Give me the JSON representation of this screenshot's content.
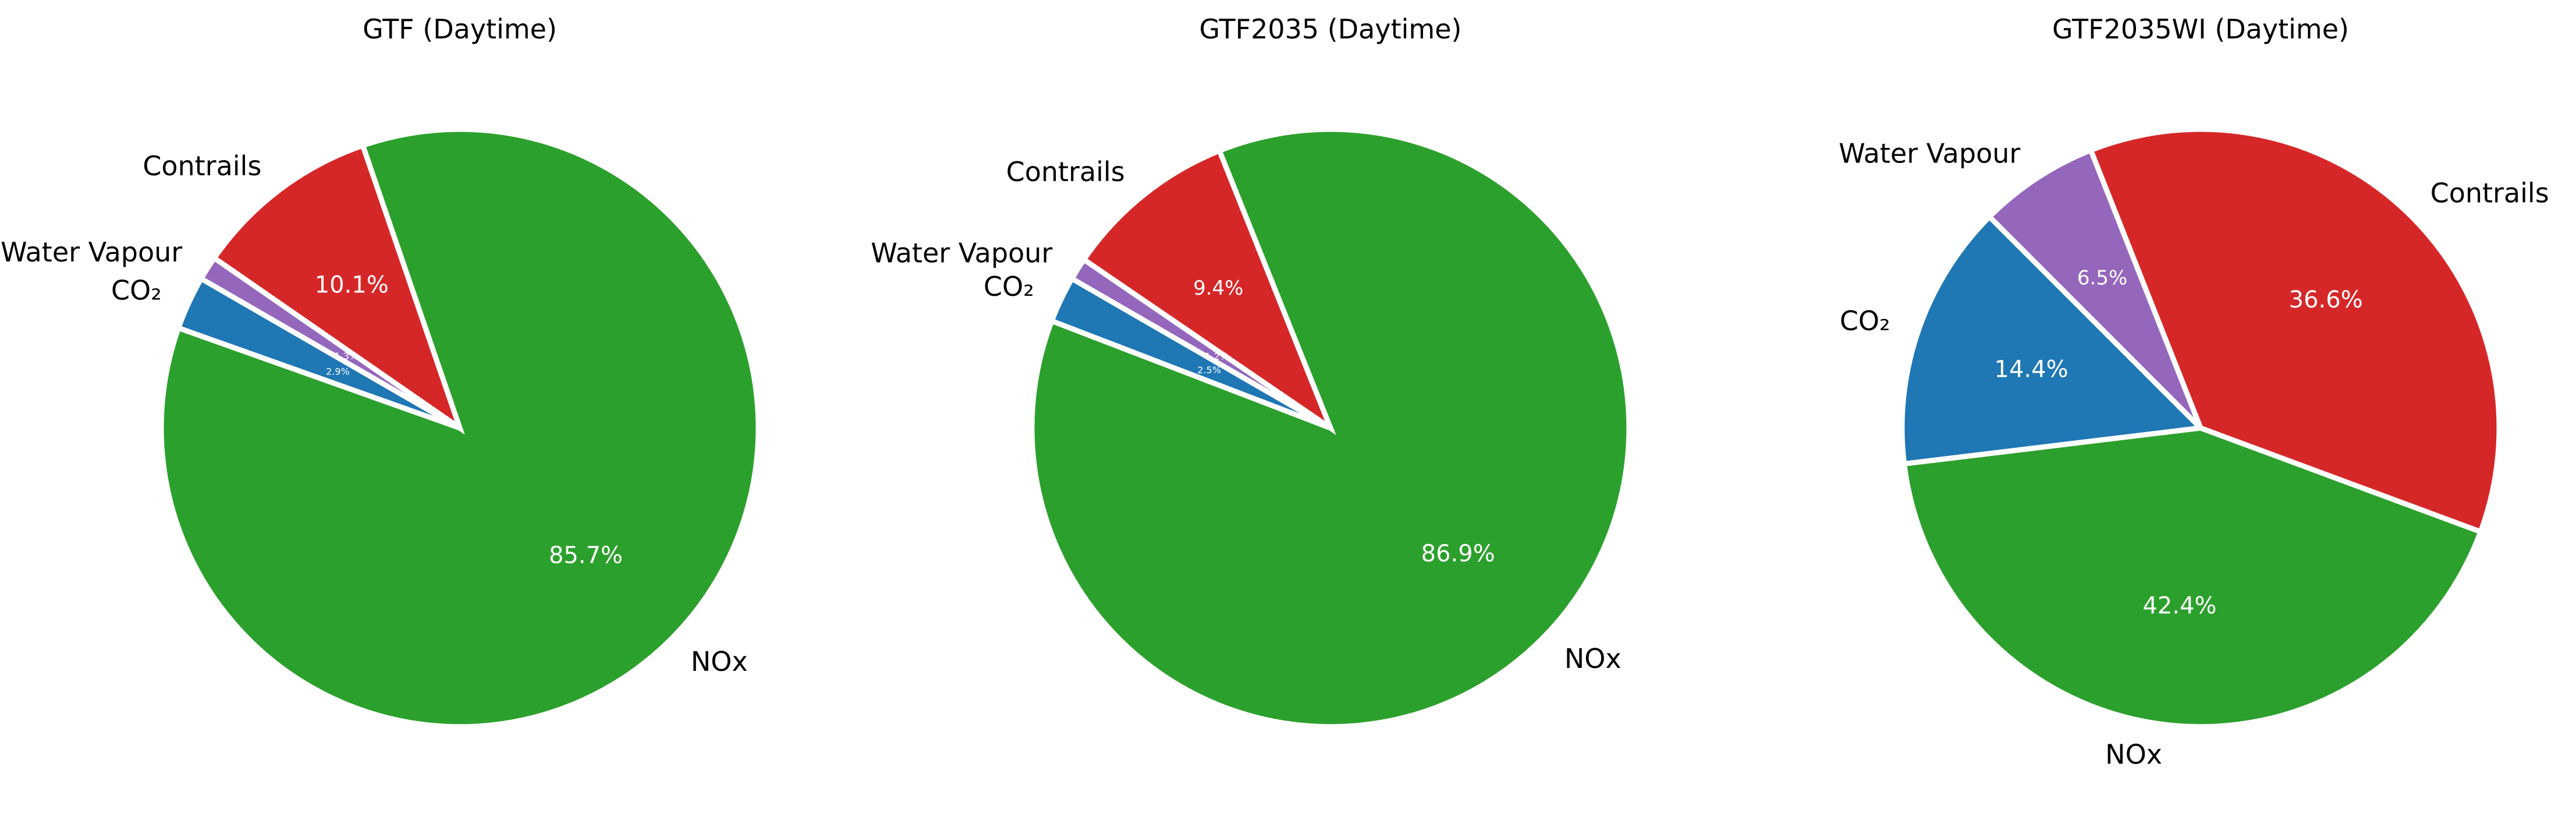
{
  "colors": {
    "CO₂": "#1f77b4",
    "Water Vapour": "#9467bd",
    "Contrails": "#d62728",
    "NOx": "#2ca02c",
    "edge": "#ffffff"
  },
  "chart_data": [
    {
      "type": "pie",
      "title": "GTF (Daytime)",
      "start_angle_deg": 150,
      "direction": "counterclockwise",
      "slices": [
        {
          "label": "CO₂",
          "value": 2.9,
          "pct_label": "2.9%"
        },
        {
          "label": "NOx",
          "value": 85.7,
          "pct_label": "85.7%"
        },
        {
          "label": "Contrails",
          "value": 10.1,
          "pct_label": "10.1%"
        },
        {
          "label": "Water Vapour",
          "value": 1.3,
          "pct_label": "1.3%"
        }
      ]
    },
    {
      "type": "pie",
      "title": "GTF2035 (Daytime)",
      "start_angle_deg": 150,
      "direction": "counterclockwise",
      "slices": [
        {
          "label": "CO₂",
          "value": 2.5,
          "pct_label": "2.5%"
        },
        {
          "label": "NOx",
          "value": 86.9,
          "pct_label": "86.9%"
        },
        {
          "label": "Contrails",
          "value": 9.4,
          "pct_label": "9.4%"
        },
        {
          "label": "Water Vapour",
          "value": 1.2,
          "pct_label": "1.2%"
        }
      ]
    },
    {
      "type": "pie",
      "title": "GTF2035WI (Daytime)",
      "start_angle_deg": 135,
      "direction": "counterclockwise",
      "slices": [
        {
          "label": "CO₂",
          "value": 14.4,
          "pct_label": "14.4%"
        },
        {
          "label": "NOx",
          "value": 42.4,
          "pct_label": "42.4%"
        },
        {
          "label": "Contrails",
          "value": 36.6,
          "pct_label": "36.6%"
        },
        {
          "label": "Water Vapour",
          "value": 6.5,
          "pct_label": "6.5%"
        }
      ]
    }
  ]
}
